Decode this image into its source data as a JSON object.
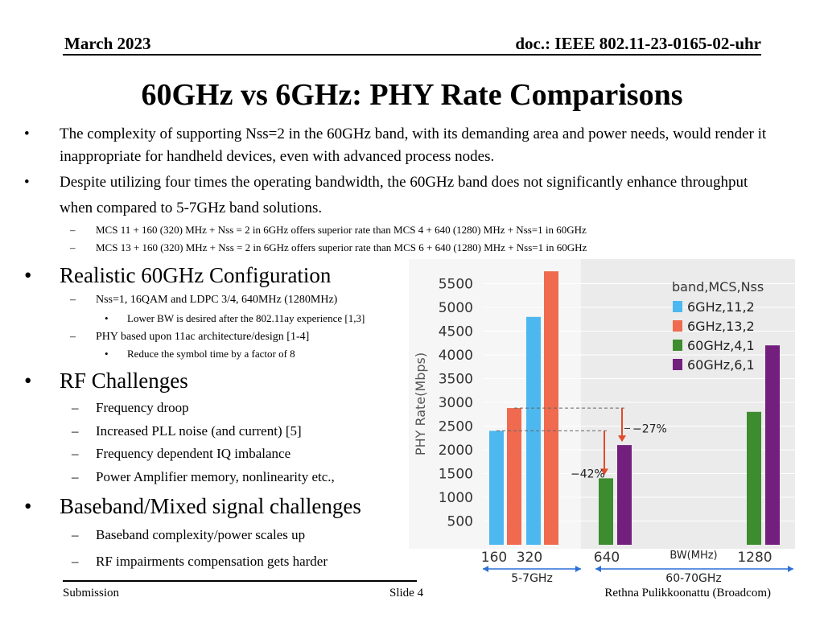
{
  "header": {
    "date": "March 2023",
    "doc": "doc.: IEEE 802.11-23-0165-02-uhr"
  },
  "title": "60GHz vs 6GHz: PHY Rate Comparisons",
  "bullets": [
    "The complexity of supporting Nss=2 in the 60GHz band, with its demanding area and power needs, would render it inappropriate for handheld devices, even with advanced process nodes.",
    "Despite utilizing four times the operating bandwidth, the 60GHz band does not significantly enhance throughput when compared to 5-7GHz band solutions."
  ],
  "sub_bullets": [
    "MCS 11 + 160 (320) MHz + Nss = 2 in 6GHz offers superior rate than  MCS 4 + 640 (1280) MHz + Nss=1 in 60GHz",
    "MCS 13 + 160 (320) MHz + Nss = 2 in 6GHz offers superior rate than  MCS 6 + 640 (1280) MHz + Nss=1 in 60GHz"
  ],
  "sections": {
    "realistic": {
      "heading": "Realistic 60GHz Configuration",
      "item1": "Nss=1, 16QAM and LDPC 3/4, 640MHz (1280MHz)",
      "item1_sub": "Lower BW is desired after the 802.11ay experience [1,3]",
      "item2": "PHY based upon 11ac architecture/design [1-4]",
      "item2_sub": "Reduce the symbol time by a factor of 8"
    },
    "rf": {
      "heading": "RF Challenges",
      "items": [
        "Frequency droop",
        "Increased PLL noise (and current) [5]",
        "Frequency dependent IQ imbalance",
        "Power Amplifier memory, nonlinearity etc.,"
      ]
    },
    "baseband": {
      "heading": "Baseband/Mixed signal challenges",
      "items": [
        "Baseband complexity/power scales up",
        "RF impairments compensation gets harder"
      ]
    }
  },
  "footer": {
    "left": "Submission",
    "center": "Slide 4",
    "right": "Rethna Pulikkoonattu (Broadcom)"
  },
  "bullet_glyph": "•",
  "dash_glyph": "–",
  "chart_data": {
    "type": "bar",
    "ylabel": "PHY Rate(Mbps)",
    "xlabel": "BW(MHz)",
    "yticks": [
      500,
      1000,
      1500,
      2000,
      2500,
      3000,
      3500,
      4000,
      4500,
      5000,
      5500
    ],
    "ylim": [
      0,
      5800
    ],
    "categories": [
      "160",
      "320",
      "640",
      "1280"
    ],
    "legend_title": "band,MCS,Nss",
    "legend_position": "top-right",
    "series": [
      {
        "name": "6GHz,11,2",
        "color": "#4db8f0",
        "values": [
          2400,
          4800,
          null,
          null
        ]
      },
      {
        "name": "6GHz,13,2",
        "color": "#ef6a4f",
        "values": [
          2880,
          5760,
          null,
          null
        ]
      },
      {
        "name": "60GHz,4,1",
        "color": "#3d8c2f",
        "values": [
          null,
          null,
          1400,
          2800
        ]
      },
      {
        "name": "60GHz,6,1",
        "color": "#731f7e",
        "values": [
          null,
          null,
          2100,
          4200
        ]
      }
    ],
    "annotations": [
      "−27%",
      "−42%"
    ],
    "groups": [
      {
        "label": "5-7GHz"
      },
      {
        "label": "60-70GHz"
      }
    ]
  }
}
